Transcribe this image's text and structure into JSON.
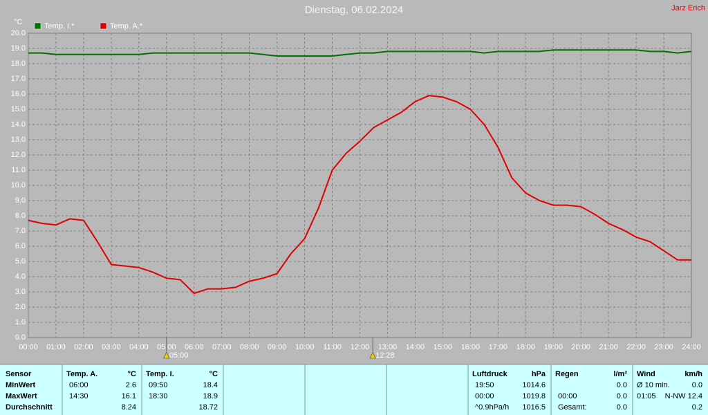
{
  "chart_data": {
    "type": "line",
    "title": "Dienstag, 06.02.2024",
    "author": "Jarz Erich",
    "y_unit": "°C",
    "grid": true,
    "legend": "top-left",
    "x": [
      0,
      0.5,
      1,
      1.5,
      2,
      2.5,
      3,
      3.5,
      4,
      4.5,
      5,
      5.5,
      6,
      6.5,
      7,
      7.5,
      8,
      8.5,
      9,
      9.5,
      10,
      10.5,
      11,
      11.5,
      12,
      12.5,
      13,
      13.5,
      14,
      14.5,
      15,
      15.5,
      16,
      16.5,
      17,
      17.5,
      18,
      18.5,
      19,
      19.5,
      20,
      20.5,
      21,
      21.5,
      22,
      22.5,
      23,
      23.5,
      24
    ],
    "series": [
      {
        "name": "Temp. I.*",
        "color": "#007000",
        "values": [
          18.7,
          18.7,
          18.6,
          18.6,
          18.6,
          18.6,
          18.6,
          18.6,
          18.6,
          18.7,
          18.7,
          18.7,
          18.7,
          18.7,
          18.7,
          18.7,
          18.7,
          18.6,
          18.5,
          18.5,
          18.5,
          18.5,
          18.5,
          18.6,
          18.7,
          18.7,
          18.8,
          18.8,
          18.8,
          18.8,
          18.8,
          18.8,
          18.8,
          18.7,
          18.8,
          18.8,
          18.8,
          18.8,
          18.9,
          18.9,
          18.9,
          18.9,
          18.9,
          18.9,
          18.9,
          18.8,
          18.8,
          18.7,
          18.8
        ]
      },
      {
        "name": "Temp. A.*",
        "color": "#e00000",
        "values": [
          7.7,
          7.5,
          7.4,
          7.8,
          7.7,
          6.3,
          4.8,
          4.7,
          4.6,
          4.3,
          3.9,
          3.8,
          2.9,
          3.2,
          3.2,
          3.3,
          3.7,
          3.9,
          4.2,
          5.5,
          6.5,
          8.5,
          11.0,
          12.1,
          12.9,
          13.8,
          14.3,
          14.8,
          15.5,
          15.9,
          15.8,
          15.5,
          15.0,
          14.0,
          12.5,
          10.5,
          9.5,
          9.0,
          8.7,
          8.7,
          8.6,
          8.1,
          7.5,
          7.1,
          6.6,
          6.3,
          5.7,
          5.1,
          5.1
        ]
      }
    ],
    "xlim": [
      0,
      24
    ],
    "xticks": [
      {
        "value": 0,
        "label": "00:00"
      },
      {
        "value": 1,
        "label": "01:00"
      },
      {
        "value": 2,
        "label": "02:00"
      },
      {
        "value": 3,
        "label": "03:00"
      },
      {
        "value": 4,
        "label": "04:00"
      },
      {
        "value": 5,
        "label": "05:00"
      },
      {
        "value": 6,
        "label": "06:00"
      },
      {
        "value": 7,
        "label": "07:00"
      },
      {
        "value": 8,
        "label": "08:00"
      },
      {
        "value": 9,
        "label": "09:00"
      },
      {
        "value": 10,
        "label": "10:00"
      },
      {
        "value": 11,
        "label": "11:00"
      },
      {
        "value": 12,
        "label": "12:00"
      },
      {
        "value": 13,
        "label": "13:00"
      },
      {
        "value": 14,
        "label": "14:00"
      },
      {
        "value": 15,
        "label": "15:00"
      },
      {
        "value": 16,
        "label": "16:00"
      },
      {
        "value": 17,
        "label": "17:00"
      },
      {
        "value": 18,
        "label": "18:00"
      },
      {
        "value": 19,
        "label": "19:00"
      },
      {
        "value": 20,
        "label": "20:00"
      },
      {
        "value": 21,
        "label": "21:00"
      },
      {
        "value": 22,
        "label": "22:00"
      },
      {
        "value": 23,
        "label": "23:00"
      },
      {
        "value": 24,
        "label": "24:00"
      }
    ],
    "ylim": [
      0,
      20
    ],
    "yticks": [
      {
        "value": 0,
        "label": "0.0"
      },
      {
        "value": 1,
        "label": "1.0"
      },
      {
        "value": 2,
        "label": "2.0"
      },
      {
        "value": 3,
        "label": "3.0"
      },
      {
        "value": 4,
        "label": "4.0"
      },
      {
        "value": 5,
        "label": "5.0"
      },
      {
        "value": 6,
        "label": "6.0"
      },
      {
        "value": 7,
        "label": "7.0"
      },
      {
        "value": 8,
        "label": "8.0"
      },
      {
        "value": 9,
        "label": "9.0"
      },
      {
        "value": 10,
        "label": "10.0"
      },
      {
        "value": 11,
        "label": "11.0"
      },
      {
        "value": 12,
        "label": "12.0"
      },
      {
        "value": 13,
        "label": "13.0"
      },
      {
        "value": 14,
        "label": "14.0"
      },
      {
        "value": 15,
        "label": "15.0"
      },
      {
        "value": 16,
        "label": "16.0"
      },
      {
        "value": 17,
        "label": "17.0"
      },
      {
        "value": 18,
        "label": "18.0"
      },
      {
        "value": 19,
        "label": "19.0"
      },
      {
        "value": 20,
        "label": "20.0"
      }
    ],
    "annotations": [
      {
        "label": "05:00",
        "x": 5
      },
      {
        "label": "12:28",
        "x": 12.4667
      }
    ]
  },
  "table": {
    "row_labels": [
      "Sensor",
      "MinWert",
      "MaxWert",
      "Durchschnitt"
    ],
    "groups": [
      {
        "header": "Temp. A.",
        "unit": "°C",
        "rows": [
          [
            "06:00",
            "2.6"
          ],
          [
            "14:30",
            "16.1"
          ],
          [
            null,
            "8.24"
          ]
        ]
      },
      {
        "header": "Temp. I.",
        "unit": "°C",
        "rows": [
          [
            "09:50",
            "18.4"
          ],
          [
            "18:30",
            "18.9"
          ],
          [
            null,
            "18.72"
          ]
        ]
      },
      {
        "header": "Luftdruck",
        "unit": "hPa",
        "rows": [
          [
            "19:50",
            "1014.6"
          ],
          [
            "00:00",
            "1019.8"
          ],
          [
            "^0.9hPa/h",
            "1016.5"
          ]
        ]
      },
      {
        "header": "Regen",
        "unit": "l/m²",
        "rows": [
          [
            null,
            "0.0"
          ],
          [
            "00:00",
            "0.0"
          ],
          [
            "Gesamt:",
            "0.0"
          ]
        ]
      },
      {
        "header": "Wind",
        "unit": "km/h",
        "rows": [
          [
            "Ø 10 min.",
            "0.0"
          ],
          [
            "01:05",
            "N-NW 12.4"
          ],
          [
            null,
            "0.2"
          ]
        ]
      }
    ]
  }
}
